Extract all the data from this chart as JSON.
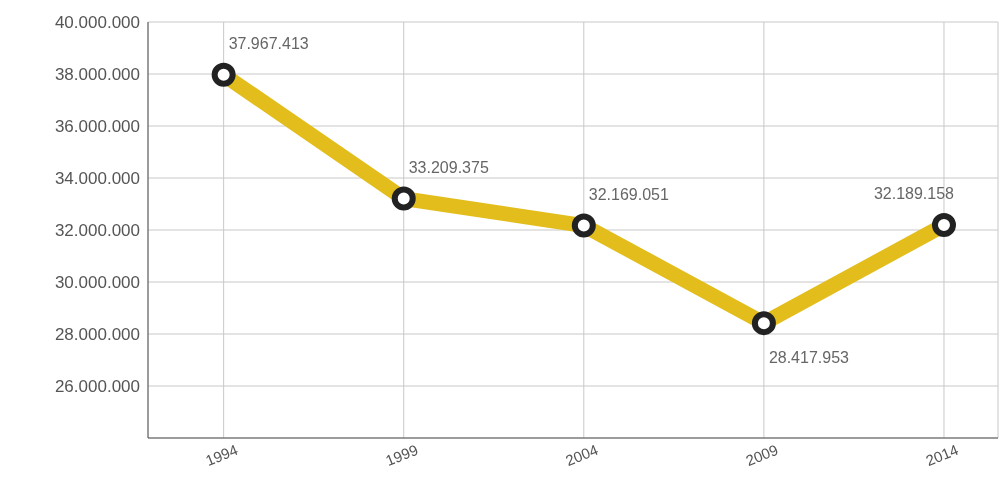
{
  "chart_data": {
    "type": "line",
    "categories": [
      "1994",
      "1999",
      "2004",
      "2009",
      "2014"
    ],
    "series": [
      {
        "color": "#e3bd1c",
        "values": [
          37967413,
          33209375,
          32169051,
          28417953,
          32189158
        ],
        "value_labels": [
          "37.967.413",
          "33.209.375",
          "32.169.051",
          "28.417.953",
          "32.189.158"
        ]
      }
    ],
    "ylim": [
      24000000,
      40000000
    ],
    "yticks": [
      {
        "value": 26000000,
        "label": "26.000.000"
      },
      {
        "value": 28000000,
        "label": "28.000.000"
      },
      {
        "value": 30000000,
        "label": "30.000.000"
      },
      {
        "value": 32000000,
        "label": "32.000.000"
      },
      {
        "value": 34000000,
        "label": "34.000.000"
      },
      {
        "value": 36000000,
        "label": "36.000.000"
      },
      {
        "value": 38000000,
        "label": "38.000.000"
      },
      {
        "value": 40000000,
        "label": "40.000.000"
      }
    ],
    "grid": true,
    "marker": "circle",
    "line_style": "solid"
  }
}
